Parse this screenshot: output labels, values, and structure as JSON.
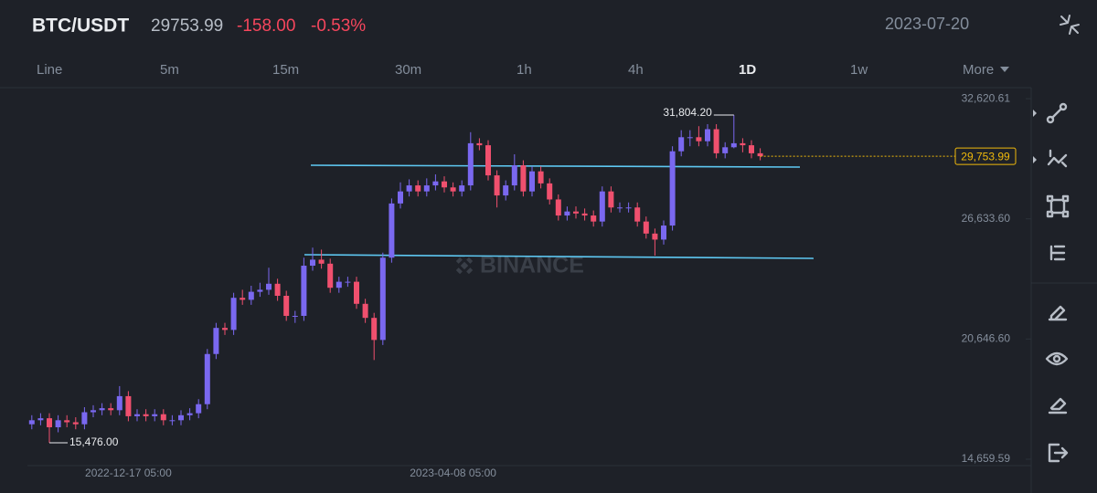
{
  "header": {
    "symbol": "BTC/USDT",
    "price": "29753.99",
    "change": "-158.00",
    "change_pct": "-0.53%",
    "date": "2023-07-20"
  },
  "intervals": [
    "Line",
    "5m",
    "15m",
    "30m",
    "1h",
    "4h",
    "1D",
    "1w",
    "More"
  ],
  "chart_data": {
    "type": "candlestick",
    "watermark": "BINANCE",
    "categories": [
      null,
      null,
      null,
      null,
      null,
      null,
      null,
      null,
      null,
      null,
      null,
      "2022-12-17 05:00",
      null,
      null,
      null,
      null,
      null,
      null,
      null,
      null,
      null,
      null,
      null,
      null,
      null,
      null,
      null,
      null,
      null,
      null,
      null,
      null,
      null,
      null,
      null,
      null,
      null,
      null,
      null,
      null,
      null,
      null,
      null,
      null,
      null,
      null,
      null,
      null,
      "2023-04-08 05:00",
      null,
      null,
      null,
      null,
      null,
      null,
      null,
      null,
      null,
      null,
      null,
      null,
      null,
      null,
      null,
      null,
      null,
      null,
      null,
      null,
      null,
      null,
      null,
      null,
      null,
      null,
      null,
      null,
      null,
      null,
      null,
      null,
      null,
      null,
      null
    ],
    "open": [
      16400,
      16600,
      16700,
      16250,
      16600,
      16500,
      16400,
      17000,
      17100,
      17200,
      17100,
      17800,
      16800,
      16900,
      16800,
      16900,
      16600,
      16600,
      16850,
      16950,
      17400,
      19900,
      21200,
      21100,
      22700,
      22600,
      23000,
      23100,
      23400,
      22800,
      21800,
      21800,
      24300,
      24600,
      24400,
      23200,
      23500,
      23500,
      22400,
      21700,
      20600,
      24700,
      27400,
      28000,
      28300,
      28000,
      28300,
      28500,
      28200,
      28000,
      28300,
      30400,
      30300,
      28800,
      27800,
      28300,
      29300,
      28000,
      29000,
      28400,
      27600,
      26800,
      27000,
      26900,
      26800,
      26500,
      28000,
      27200,
      27200,
      27200,
      26500,
      25900,
      25600,
      26300,
      30000,
      30700,
      30700,
      30500,
      31100,
      29900,
      30200,
      30400,
      30300,
      29900
    ],
    "high": [
      16850,
      16950,
      16950,
      16850,
      16850,
      16750,
      17250,
      17350,
      17450,
      17450,
      18300,
      18050,
      17150,
      17150,
      17150,
      17150,
      16850,
      17100,
      17200,
      17650,
      20150,
      21450,
      21450,
      22950,
      23100,
      23300,
      23450,
      24200,
      23650,
      23050,
      22050,
      24700,
      25200,
      25100,
      24650,
      23750,
      23750,
      23750,
      22650,
      21950,
      24950,
      27650,
      28450,
      28600,
      28550,
      28650,
      28850,
      28750,
      28450,
      28550,
      30950,
      30650,
      30550,
      29050,
      28550,
      29850,
      29550,
      29250,
      29250,
      28650,
      27850,
      27250,
      27250,
      27150,
      27050,
      28250,
      28250,
      27450,
      27450,
      27450,
      26750,
      26150,
      26550,
      30250,
      31050,
      31050,
      31250,
      31350,
      31350,
      30450,
      31804.2,
      30650,
      30550,
      30150
    ],
    "low": [
      16150,
      16350,
      15476,
      16000,
      16250,
      16150,
      16150,
      16750,
      16850,
      16850,
      16850,
      16550,
      16550,
      16550,
      16550,
      16350,
      16350,
      16350,
      16600,
      16700,
      17150,
      19650,
      20850,
      20850,
      22350,
      22350,
      22750,
      22850,
      22550,
      21550,
      21450,
      21550,
      24050,
      24150,
      22950,
      22950,
      23250,
      22150,
      21450,
      19600,
      20350,
      24450,
      27150,
      27750,
      27750,
      27750,
      28050,
      27950,
      27750,
      27750,
      28050,
      30050,
      28550,
      27200,
      27550,
      28050,
      27750,
      27750,
      28150,
      27350,
      26550,
      26550,
      26650,
      26550,
      26250,
      26250,
      26950,
      26950,
      26950,
      26250,
      25650,
      24800,
      25350,
      26050,
      29750,
      30250,
      30250,
      30250,
      29650,
      29650,
      30150,
      29950,
      29650,
      29550
    ],
    "close": [
      16600,
      16700,
      16250,
      16600,
      16500,
      16400,
      17000,
      17100,
      17200,
      17100,
      17800,
      16800,
      16900,
      16800,
      16900,
      16600,
      16600,
      16850,
      16950,
      17400,
      19900,
      21200,
      21100,
      22700,
      22600,
      23000,
      23100,
      23400,
      22800,
      21800,
      21800,
      24300,
      24600,
      24400,
      23200,
      23500,
      23500,
      22400,
      21700,
      20600,
      24700,
      27400,
      28000,
      28300,
      28000,
      28300,
      28500,
      28200,
      28000,
      28300,
      30400,
      30300,
      28800,
      27800,
      28300,
      29300,
      28000,
      29000,
      28400,
      27600,
      26800,
      27000,
      26900,
      26800,
      26500,
      28000,
      27200,
      27200,
      27200,
      26500,
      25900,
      25600,
      26300,
      30000,
      30700,
      30700,
      30500,
      31100,
      29900,
      30200,
      30400,
      30300,
      29900,
      29753.99
    ],
    "up_color": "#7a68f0",
    "down_color": "#f0506e",
    "ylim": [
      14340,
      33170
    ],
    "yticks": [
      {
        "value": 14659.59,
        "label": "14,659.59"
      },
      {
        "value": 20646.6,
        "label": "20,646.60"
      },
      {
        "value": 26633.6,
        "label": "26,633.60"
      },
      {
        "value": 32620.61,
        "label": "32,620.61"
      }
    ],
    "high_label": {
      "value": 31804.2,
      "label": "31,804.20"
    },
    "low_label": {
      "value": 15476,
      "label": "15,476.00"
    },
    "last_price": {
      "value": 29753.99,
      "label": "29,753.99"
    },
    "grid": false
  }
}
